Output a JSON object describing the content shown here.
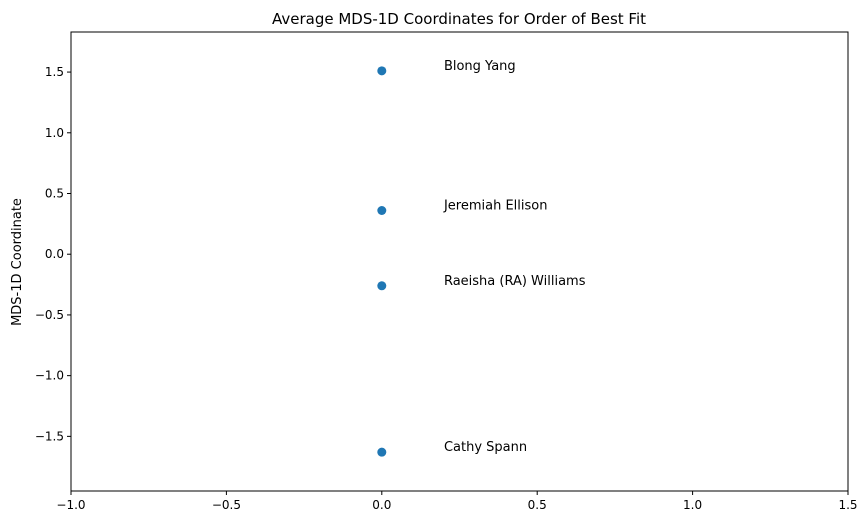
{
  "chart_data": {
    "type": "scatter",
    "title": "Average MDS-1D Coordinates for Order of Best Fit",
    "xlabel": "",
    "ylabel": "MDS-1D Coordinate",
    "xlim": [
      -1.0,
      1.5
    ],
    "ylim": [
      -1.95,
      1.83
    ],
    "xticks": [
      -1.0,
      -0.5,
      0.0,
      0.5,
      1.0,
      1.5
    ],
    "xtick_labels": [
      "−1.0",
      "−0.5",
      "0.0",
      "0.5",
      "1.0",
      "1.5"
    ],
    "yticks": [
      -1.5,
      -1.0,
      -0.5,
      0.0,
      0.5,
      1.0,
      1.5
    ],
    "ytick_labels": [
      "−1.5",
      "−1.0",
      "−0.5",
      "0.0",
      "0.5",
      "1.0",
      "1.5"
    ],
    "grid": false,
    "marker_color": "#1f77b4",
    "points": [
      {
        "label": "Blong Yang",
        "x": 0.0,
        "y": 1.51
      },
      {
        "label": "Jeremiah Ellison",
        "x": 0.0,
        "y": 0.36
      },
      {
        "label": "Raeisha (RA) Williams",
        "x": 0.0,
        "y": -0.26
      },
      {
        "label": "Cathy Spann",
        "x": 0.0,
        "y": -1.63
      }
    ],
    "label_offset_x": 0.2
  }
}
